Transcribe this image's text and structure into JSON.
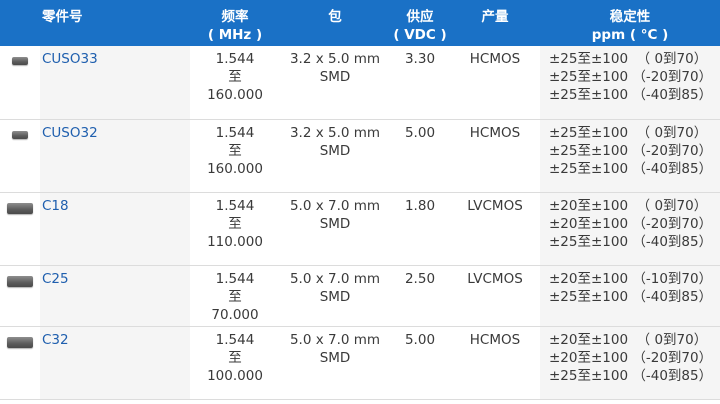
{
  "header": {
    "part": "零件号",
    "freq_line1": "频率",
    "freq_line2": "( MHz )",
    "package": "包",
    "supply_line1": "供应",
    "supply_line2": "( VDC )",
    "output": "产量",
    "stability_line1": "稳定性",
    "stability_line2": "ppm ( °C )"
  },
  "rows": [
    {
      "part": "CUSO33",
      "chip_icon": "small-smd-chip-icon",
      "freq": [
        "1.544",
        "至",
        "160.000"
      ],
      "package": [
        "3.2 x 5.0 mm",
        "SMD"
      ],
      "supply": "3.30",
      "output": "HCMOS",
      "stability": [
        "±25至±100  （ 0到70）",
        "±25至±100 （-20到70）",
        "±25至±100 （-40到85）"
      ]
    },
    {
      "part": "CUSO32",
      "chip_icon": "small-smd-chip-icon",
      "freq": [
        "1.544",
        "至",
        "160.000"
      ],
      "package": [
        "3.2 x 5.0 mm",
        "SMD"
      ],
      "supply": "5.00",
      "output": "HCMOS",
      "stability": [
        "±25至±100  （ 0到70）",
        "±25至±100 （-20到70）",
        "±25至±100 （-40到85）"
      ]
    },
    {
      "part": "C18",
      "chip_icon": "large-smd-chip-icon",
      "freq": [
        "1.544",
        "至",
        "110.000"
      ],
      "package": [
        "5.0 x 7.0 mm",
        "SMD"
      ],
      "supply": "1.80",
      "output": "LVCMOS",
      "stability": [
        "±20至±100  （ 0到70）",
        "±20至±100 （-20到70）",
        "±25至±100 （-40到85）"
      ]
    },
    {
      "part": "C25",
      "chip_icon": "large-smd-chip-icon",
      "freq": [
        "1.544",
        "至",
        "70.000"
      ],
      "package": [
        "5.0 x 7.0 mm",
        "SMD"
      ],
      "supply": "2.50",
      "output": "LVCMOS",
      "stability": [
        "±20至±100 （-10到70）",
        "±25至±100 （-40到85）"
      ]
    },
    {
      "part": "C32",
      "chip_icon": "large-smd-chip-icon",
      "freq": [
        "1.544",
        "至",
        "100.000"
      ],
      "package": [
        "5.0 x 7.0 mm",
        "SMD"
      ],
      "supply": "5.00",
      "output": "HCMOS",
      "stability": [
        "±20至±100  （ 0到70）",
        "±20至±100 （-20到70）",
        "±25至±100 （-40到85）"
      ]
    }
  ],
  "colors": {
    "header_bg": "#1a71c6",
    "link": "#1f5fae",
    "shaded_cell": "#f5f5f5"
  }
}
